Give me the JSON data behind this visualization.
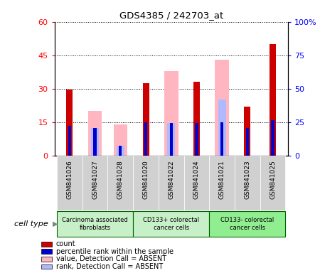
{
  "title": "GDS4385 / 242703_at",
  "samples": [
    "GSM841026",
    "GSM841027",
    "GSM841028",
    "GSM841020",
    "GSM841022",
    "GSM841024",
    "GSM841021",
    "GSM841023",
    "GSM841025"
  ],
  "count_values": [
    29.5,
    0,
    0,
    32.5,
    0,
    33,
    0,
    22,
    50
  ],
  "percentile_values": [
    13.5,
    12.5,
    4.5,
    15,
    14.5,
    14.5,
    15,
    12.5,
    16
  ],
  "pink_value_values": [
    0,
    20,
    14,
    0,
    38,
    0,
    43,
    0,
    0
  ],
  "pink_rank_values": [
    0,
    12.5,
    4.5,
    0,
    14.5,
    0,
    25,
    0,
    0
  ],
  "ylim_left": [
    0,
    60
  ],
  "ylim_right": [
    0,
    100
  ],
  "yticks_left": [
    0,
    15,
    30,
    45,
    60
  ],
  "yticks_right": [
    0,
    25,
    50,
    75,
    100
  ],
  "cell_groups": [
    {
      "label": "Carcinoma associated\nfibroblasts",
      "indices": [
        0,
        1,
        2
      ],
      "color": "#c8f0c8"
    },
    {
      "label": "CD133+ colorectal\ncancer cells",
      "indices": [
        3,
        4,
        5
      ],
      "color": "#c8f0c8"
    },
    {
      "label": "CD133- colorectal\ncancer cells",
      "indices": [
        6,
        7,
        8
      ],
      "color": "#90ee90"
    }
  ],
  "count_color": "#cc0000",
  "percentile_color": "#0000cc",
  "pink_value_color": "#ffb6c1",
  "pink_rank_color": "#b0b8ff",
  "sample_bg_color": "#d0d0d0",
  "legend_items": [
    {
      "color": "#cc0000",
      "label": "count"
    },
    {
      "color": "#0000cc",
      "label": "percentile rank within the sample"
    },
    {
      "color": "#ffb6c1",
      "label": "value, Detection Call = ABSENT"
    },
    {
      "color": "#b0b8ff",
      "label": "rank, Detection Call = ABSENT"
    }
  ]
}
